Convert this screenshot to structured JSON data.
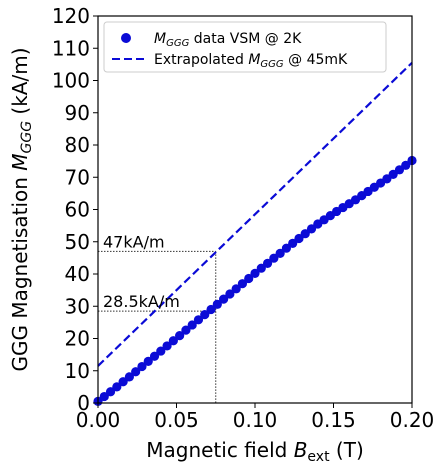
{
  "chart_data": {
    "type": "line",
    "xlabel": {
      "prefix": "Magnetic field ",
      "var": "B",
      "sub": "ext",
      "suffix": " (T)"
    },
    "ylabel": {
      "prefix": "GGG Magnetisation ",
      "var": "M",
      "sub": "GGG",
      "suffix": " (kA/m)"
    },
    "xlim": [
      0,
      0.2
    ],
    "ylim": [
      0,
      120
    ],
    "xticks": [
      "0.00",
      "0.05",
      "0.10",
      "0.15",
      "0.20"
    ],
    "yticks": [
      "0",
      "10",
      "20",
      "30",
      "40",
      "50",
      "60",
      "70",
      "80",
      "90",
      "100",
      "110",
      "120"
    ],
    "legend_position": "top-left",
    "series": [
      {
        "label_var": "M",
        "label_sub": "GGG",
        "label_rest": " data VSM @ 2K",
        "style": "markers",
        "color": "#0b0bd6",
        "x": [
          0.0,
          0.004,
          0.008,
          0.012,
          0.016,
          0.02,
          0.024,
          0.028,
          0.032,
          0.036,
          0.04,
          0.044,
          0.048,
          0.052,
          0.056,
          0.06,
          0.064,
          0.068,
          0.072,
          0.076,
          0.08,
          0.084,
          0.088,
          0.092,
          0.096,
          0.1,
          0.104,
          0.108,
          0.112,
          0.116,
          0.12,
          0.124,
          0.128,
          0.132,
          0.136,
          0.14,
          0.144,
          0.148,
          0.152,
          0.156,
          0.16,
          0.164,
          0.168,
          0.172,
          0.176,
          0.18,
          0.184,
          0.188,
          0.192,
          0.196,
          0.2
        ],
        "y": [
          0.5,
          2.0,
          3.5,
          5.0,
          6.6,
          8.1,
          9.7,
          11.3,
          12.9,
          14.5,
          16.1,
          17.7,
          19.3,
          20.9,
          22.6,
          24.2,
          25.8,
          27.4,
          29.0,
          30.6,
          32.2,
          33.8,
          35.4,
          37.0,
          38.6,
          40.2,
          41.8,
          43.3,
          44.9,
          46.4,
          48.0,
          49.5,
          51.0,
          52.5,
          54.0,
          55.5,
          56.8,
          58.1,
          59.4,
          60.6,
          61.8,
          63.0,
          64.3,
          65.6,
          66.9,
          68.2,
          69.5,
          70.9,
          72.3,
          73.7,
          75.2
        ]
      },
      {
        "label_prefix": "Extrapolated ",
        "label_var": "M",
        "label_sub": "GGG",
        "label_rest": " @ 45mK",
        "style": "dashed",
        "color": "#0b0bd6",
        "x": [
          0,
          0.2
        ],
        "y": [
          11.5,
          105.5
        ]
      }
    ],
    "annotations": [
      {
        "text": "47kA/m",
        "x": 0.075,
        "y": 47
      },
      {
        "text": "28.5kA/m",
        "x": 0.075,
        "y": 28.5
      }
    ]
  }
}
